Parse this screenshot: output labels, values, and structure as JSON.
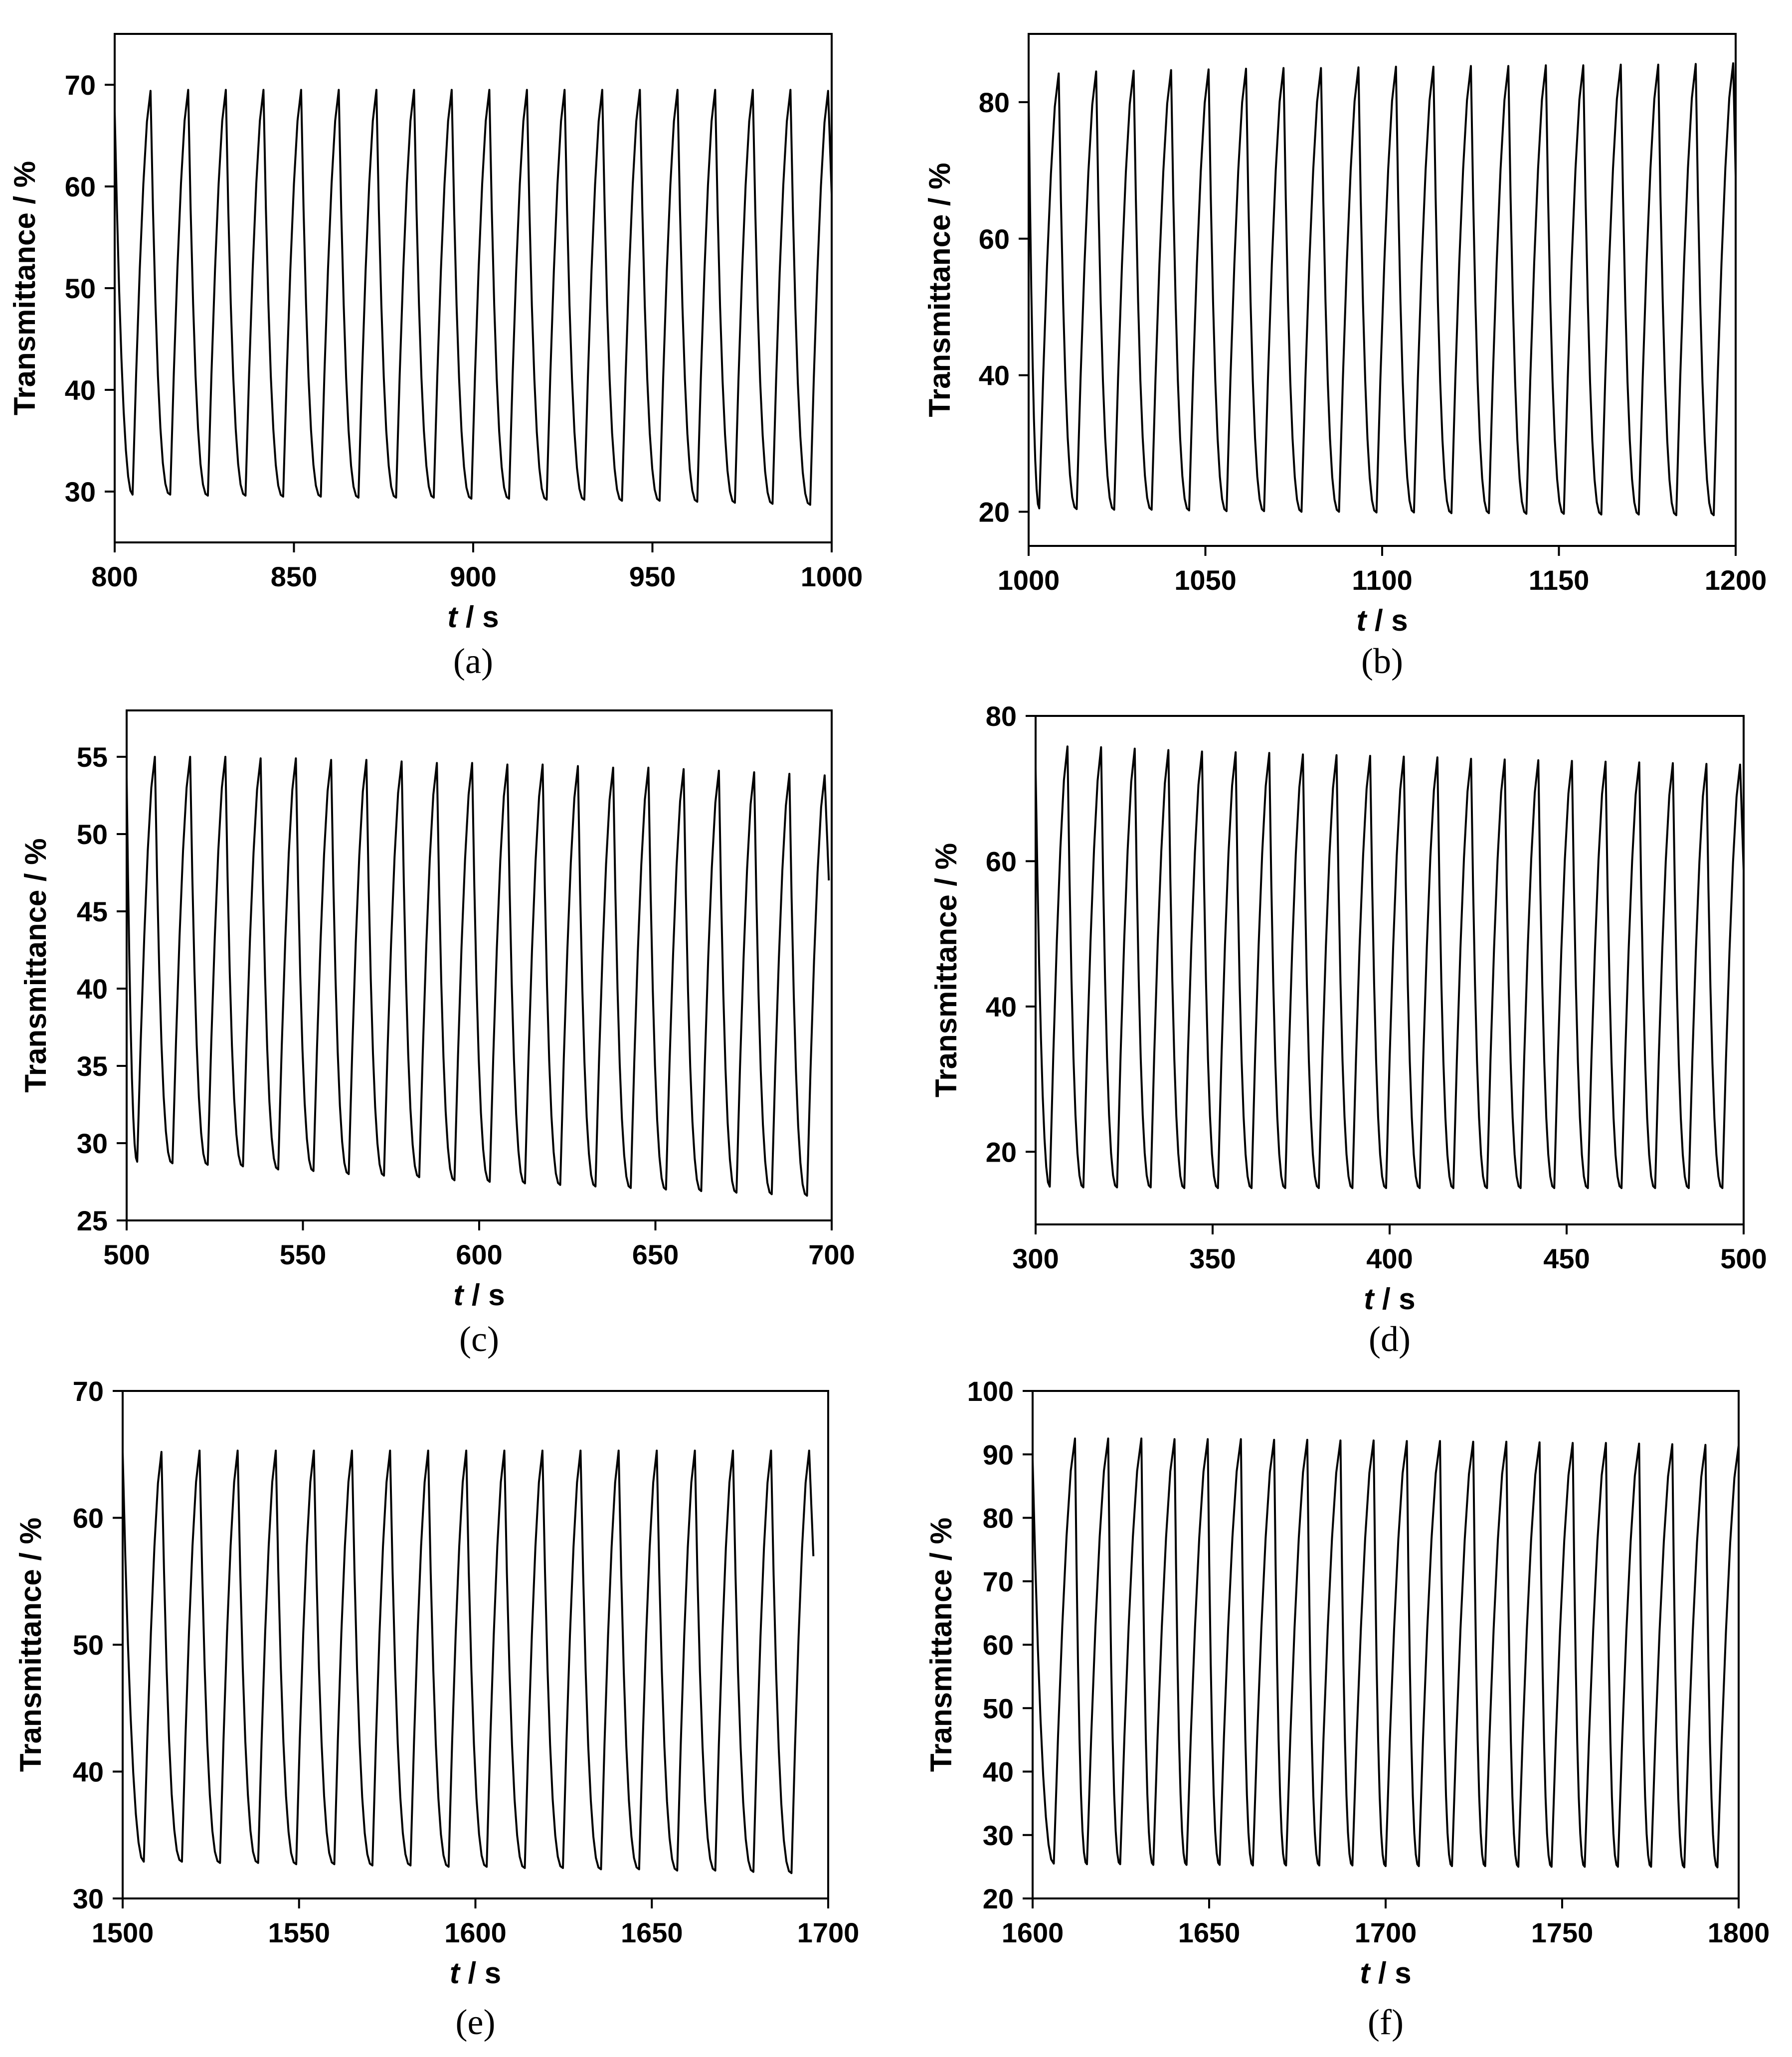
{
  "chart_data": [
    {
      "type": "line",
      "caption": "(a)",
      "xlabel": "t / s",
      "ylabel": "Transmittance / %",
      "xlim": [
        800,
        1000
      ],
      "ylim": [
        25,
        75
      ],
      "xticks": [
        800,
        850,
        900,
        950,
        1000
      ],
      "yticks": [
        30,
        40,
        50,
        60,
        70
      ],
      "series": [
        {
          "period_s": 10.5,
          "cycles": [
            {
              "t_min": 805,
              "min": 29.7,
              "t_max": 810,
              "max": 69.4
            },
            {
              "t_min": 815.5,
              "min": 29.7,
              "t_max": 820.5,
              "max": 69.5
            },
            {
              "t_min": 826,
              "min": 29.6,
              "t_max": 831,
              "max": 69.5
            },
            {
              "t_min": 836.5,
              "min": 29.6,
              "t_max": 841.5,
              "max": 69.5
            },
            {
              "t_min": 847,
              "min": 29.5,
              "t_max": 852,
              "max": 69.5
            },
            {
              "t_min": 857.5,
              "min": 29.5,
              "t_max": 862.5,
              "max": 69.5
            },
            {
              "t_min": 868,
              "min": 29.4,
              "t_max": 873,
              "max": 69.5
            },
            {
              "t_min": 878.5,
              "min": 29.4,
              "t_max": 883.5,
              "max": 69.5
            },
            {
              "t_min": 889,
              "min": 29.4,
              "t_max": 894,
              "max": 69.5
            },
            {
              "t_min": 899.5,
              "min": 29.3,
              "t_max": 904.5,
              "max": 69.5
            },
            {
              "t_min": 910,
              "min": 29.3,
              "t_max": 915,
              "max": 69.5
            },
            {
              "t_min": 920.5,
              "min": 29.2,
              "t_max": 925.5,
              "max": 69.5
            },
            {
              "t_min": 931,
              "min": 29.2,
              "t_max": 936,
              "max": 69.5
            },
            {
              "t_min": 941.5,
              "min": 29.1,
              "t_max": 946.5,
              "max": 69.5
            },
            {
              "t_min": 952,
              "min": 29.1,
              "t_max": 957,
              "max": 69.5
            },
            {
              "t_min": 962.5,
              "min": 29.0,
              "t_max": 967.5,
              "max": 69.5
            },
            {
              "t_min": 973,
              "min": 28.9,
              "t_max": 978,
              "max": 69.5
            },
            {
              "t_min": 983.5,
              "min": 28.8,
              "t_max": 988.5,
              "max": 69.5
            },
            {
              "t_min": 994,
              "min": 28.7,
              "t_max": 999,
              "max": 69.4
            }
          ]
        }
      ]
    },
    {
      "type": "line",
      "caption": "(b)",
      "xlabel": "t / s",
      "ylabel": "Transmittance / %",
      "xlim": [
        1000,
        1200
      ],
      "ylim": [
        15,
        90
      ],
      "xticks": [
        1000,
        1050,
        1100,
        1150,
        1200
      ],
      "yticks": [
        20,
        40,
        60,
        80
      ],
      "series": [
        {
          "period_s": 10.6,
          "cycles": [
            {
              "t_min": 1003,
              "min": 20.5,
              "t_max": 1008.5,
              "max": 84.2
            },
            {
              "t_min": 1013.6,
              "min": 20.4,
              "t_max": 1019.1,
              "max": 84.5
            },
            {
              "t_min": 1024.2,
              "min": 20.3,
              "t_max": 1029.7,
              "max": 84.6
            },
            {
              "t_min": 1034.8,
              "min": 20.3,
              "t_max": 1040.3,
              "max": 84.7
            },
            {
              "t_min": 1045.4,
              "min": 20.2,
              "t_max": 1050.9,
              "max": 84.8
            },
            {
              "t_min": 1056,
              "min": 20.1,
              "t_max": 1061.5,
              "max": 84.9
            },
            {
              "t_min": 1066.6,
              "min": 20.1,
              "t_max": 1072.1,
              "max": 85.0
            },
            {
              "t_min": 1077.2,
              "min": 20.0,
              "t_max": 1082.7,
              "max": 85.0
            },
            {
              "t_min": 1087.8,
              "min": 20.0,
              "t_max": 1093.3,
              "max": 85.1
            },
            {
              "t_min": 1098.4,
              "min": 19.9,
              "t_max": 1103.9,
              "max": 85.2
            },
            {
              "t_min": 1109,
              "min": 19.9,
              "t_max": 1114.5,
              "max": 85.2
            },
            {
              "t_min": 1119.6,
              "min": 19.8,
              "t_max": 1125.1,
              "max": 85.3
            },
            {
              "t_min": 1130.2,
              "min": 19.8,
              "t_max": 1135.7,
              "max": 85.3
            },
            {
              "t_min": 1140.8,
              "min": 19.7,
              "t_max": 1146.3,
              "max": 85.4
            },
            {
              "t_min": 1151.4,
              "min": 19.7,
              "t_max": 1156.9,
              "max": 85.4
            },
            {
              "t_min": 1162,
              "min": 19.6,
              "t_max": 1167.5,
              "max": 85.5
            },
            {
              "t_min": 1172.6,
              "min": 19.6,
              "t_max": 1178.1,
              "max": 85.5
            },
            {
              "t_min": 1183.2,
              "min": 19.5,
              "t_max": 1188.7,
              "max": 85.6
            },
            {
              "t_min": 1193.8,
              "min": 19.5,
              "t_max": 1199.3,
              "max": 85.7
            }
          ]
        }
      ]
    },
    {
      "type": "line",
      "caption": "(c)",
      "xlabel": "t / s",
      "ylabel": "Transmittance / %",
      "xlim": [
        500,
        700
      ],
      "ylim": [
        25,
        58
      ],
      "xticks": [
        500,
        550,
        600,
        650,
        700
      ],
      "yticks": [
        25,
        30,
        35,
        40,
        45,
        50,
        55
      ],
      "series": [
        {
          "period_s": 10,
          "cycles": [
            {
              "t_min": 503,
              "min": 28.8,
              "t_max": 508,
              "max": 55.0
            },
            {
              "t_min": 513,
              "min": 28.7,
              "t_max": 518,
              "max": 55.0
            },
            {
              "t_min": 523,
              "min": 28.6,
              "t_max": 528,
              "max": 55.0
            },
            {
              "t_min": 533,
              "min": 28.5,
              "t_max": 538,
              "max": 54.9
            },
            {
              "t_min": 543,
              "min": 28.3,
              "t_max": 548,
              "max": 54.9
            },
            {
              "t_min": 553,
              "min": 28.2,
              "t_max": 558,
              "max": 54.8
            },
            {
              "t_min": 563,
              "min": 28.0,
              "t_max": 568,
              "max": 54.8
            },
            {
              "t_min": 573,
              "min": 27.9,
              "t_max": 578,
              "max": 54.7
            },
            {
              "t_min": 583,
              "min": 27.8,
              "t_max": 588,
              "max": 54.6
            },
            {
              "t_min": 593,
              "min": 27.6,
              "t_max": 598,
              "max": 54.6
            },
            {
              "t_min": 603,
              "min": 27.5,
              "t_max": 608,
              "max": 54.5
            },
            {
              "t_min": 613,
              "min": 27.4,
              "t_max": 618,
              "max": 54.5
            },
            {
              "t_min": 623,
              "min": 27.3,
              "t_max": 628,
              "max": 54.4
            },
            {
              "t_min": 633,
              "min": 27.2,
              "t_max": 638,
              "max": 54.3
            },
            {
              "t_min": 643,
              "min": 27.1,
              "t_max": 648,
              "max": 54.3
            },
            {
              "t_min": 653,
              "min": 27.0,
              "t_max": 658,
              "max": 54.2
            },
            {
              "t_min": 663,
              "min": 26.9,
              "t_max": 668,
              "max": 54.1
            },
            {
              "t_min": 673,
              "min": 26.8,
              "t_max": 678,
              "max": 54.0
            },
            {
              "t_min": 683,
              "min": 26.7,
              "t_max": 688,
              "max": 53.9
            },
            {
              "t_min": 693,
              "min": 26.6,
              "t_max": 698,
              "max": 53.8
            }
          ]
        }
      ]
    },
    {
      "type": "line",
      "caption": "(d)",
      "xlabel": "t / s",
      "ylabel": "Transmittance / %",
      "xlim": [
        300,
        500
      ],
      "ylim": [
        10,
        80
      ],
      "xticks": [
        300,
        350,
        400,
        450,
        500
      ],
      "yticks": [
        20,
        40,
        60,
        80
      ],
      "series": [
        {
          "period_s": 9.5,
          "cycles": [
            {
              "t_min": 304,
              "min": 15.2,
              "t_max": 309,
              "max": 75.8
            },
            {
              "t_min": 313.5,
              "min": 15.1,
              "t_max": 318.5,
              "max": 75.7
            },
            {
              "t_min": 323,
              "min": 15.1,
              "t_max": 328,
              "max": 75.5
            },
            {
              "t_min": 332.5,
              "min": 15.1,
              "t_max": 337.5,
              "max": 75.3
            },
            {
              "t_min": 342,
              "min": 15.0,
              "t_max": 347,
              "max": 75.1
            },
            {
              "t_min": 351.5,
              "min": 15.0,
              "t_max": 356.5,
              "max": 75.0
            },
            {
              "t_min": 361,
              "min": 15.0,
              "t_max": 366,
              "max": 74.9
            },
            {
              "t_min": 370.5,
              "min": 15.0,
              "t_max": 375.5,
              "max": 74.7
            },
            {
              "t_min": 380,
              "min": 15.0,
              "t_max": 385,
              "max": 74.6
            },
            {
              "t_min": 389.5,
              "min": 15.0,
              "t_max": 394.5,
              "max": 74.5
            },
            {
              "t_min": 399,
              "min": 15.0,
              "t_max": 404,
              "max": 74.4
            },
            {
              "t_min": 408.5,
              "min": 15.0,
              "t_max": 413.5,
              "max": 74.3
            },
            {
              "t_min": 418,
              "min": 15.0,
              "t_max": 423,
              "max": 74.1
            },
            {
              "t_min": 427.5,
              "min": 15.0,
              "t_max": 432.5,
              "max": 74.0
            },
            {
              "t_min": 437,
              "min": 15.0,
              "t_max": 442,
              "max": 73.9
            },
            {
              "t_min": 446.5,
              "min": 15.0,
              "t_max": 451.5,
              "max": 73.8
            },
            {
              "t_min": 456,
              "min": 15.0,
              "t_max": 461,
              "max": 73.7
            },
            {
              "t_min": 465.5,
              "min": 15.0,
              "t_max": 470.5,
              "max": 73.6
            },
            {
              "t_min": 475,
              "min": 15.0,
              "t_max": 480,
              "max": 73.5
            },
            {
              "t_min": 484.5,
              "min": 15.0,
              "t_max": 489.5,
              "max": 73.4
            },
            {
              "t_min": 494,
              "min": 15.0,
              "t_max": 499,
              "max": 73.3
            }
          ]
        }
      ]
    },
    {
      "type": "line",
      "caption": "(e)",
      "xlabel": "t / s",
      "ylabel": "Transmittance / %",
      "xlim": [
        1500,
        1700
      ],
      "ylim": [
        30,
        70
      ],
      "xticks": [
        1500,
        1550,
        1600,
        1650,
        1700
      ],
      "yticks": [
        30,
        40,
        50,
        60,
        70
      ],
      "series": [
        {
          "period_s": 10.8,
          "cycles": [
            {
              "t_min": 1506,
              "min": 32.9,
              "t_max": 1511,
              "max": 65.2
            },
            {
              "t_min": 1516.8,
              "min": 32.9,
              "t_max": 1521.8,
              "max": 65.3
            },
            {
              "t_min": 1527.6,
              "min": 32.8,
              "t_max": 1532.6,
              "max": 65.3
            },
            {
              "t_min": 1538.4,
              "min": 32.8,
              "t_max": 1543.4,
              "max": 65.3
            },
            {
              "t_min": 1549.2,
              "min": 32.7,
              "t_max": 1554.2,
              "max": 65.3
            },
            {
              "t_min": 1560,
              "min": 32.7,
              "t_max": 1565,
              "max": 65.3
            },
            {
              "t_min": 1570.8,
              "min": 32.6,
              "t_max": 1575.8,
              "max": 65.3
            },
            {
              "t_min": 1581.6,
              "min": 32.6,
              "t_max": 1586.6,
              "max": 65.3
            },
            {
              "t_min": 1592.4,
              "min": 32.5,
              "t_max": 1597.4,
              "max": 65.3
            },
            {
              "t_min": 1603.2,
              "min": 32.5,
              "t_max": 1608.2,
              "max": 65.3
            },
            {
              "t_min": 1614,
              "min": 32.4,
              "t_max": 1619,
              "max": 65.3
            },
            {
              "t_min": 1624.8,
              "min": 32.4,
              "t_max": 1629.8,
              "max": 65.3
            },
            {
              "t_min": 1635.6,
              "min": 32.3,
              "t_max": 1640.6,
              "max": 65.3
            },
            {
              "t_min": 1646.4,
              "min": 32.3,
              "t_max": 1651.4,
              "max": 65.3
            },
            {
              "t_min": 1657.2,
              "min": 32.2,
              "t_max": 1662.2,
              "max": 65.3
            },
            {
              "t_min": 1668,
              "min": 32.2,
              "t_max": 1673,
              "max": 65.3
            },
            {
              "t_min": 1678.8,
              "min": 32.1,
              "t_max": 1683.8,
              "max": 65.3
            },
            {
              "t_min": 1689.6,
              "min": 32.0,
              "t_max": 1694.6,
              "max": 65.3
            }
          ]
        }
      ]
    },
    {
      "type": "line",
      "caption": "(f)",
      "xlabel": "t / s",
      "ylabel": "Transmittance / %",
      "xlim": [
        1600,
        1800
      ],
      "ylim": [
        20,
        100
      ],
      "xticks": [
        1600,
        1650,
        1700,
        1750,
        1800
      ],
      "yticks": [
        20,
        30,
        40,
        50,
        60,
        70,
        80,
        90,
        100
      ],
      "series": [
        {
          "period_s": 9.4,
          "cycles": [
            {
              "t_min": 1606,
              "min": 25.5,
              "t_max": 1612,
              "max": 92.5
            },
            {
              "t_min": 1615.4,
              "min": 25.4,
              "t_max": 1621.4,
              "max": 92.5
            },
            {
              "t_min": 1624.8,
              "min": 25.4,
              "t_max": 1630.8,
              "max": 92.5
            },
            {
              "t_min": 1634.2,
              "min": 25.3,
              "t_max": 1640.2,
              "max": 92.4
            },
            {
              "t_min": 1643.6,
              "min": 25.3,
              "t_max": 1649.6,
              "max": 92.4
            },
            {
              "t_min": 1653,
              "min": 25.3,
              "t_max": 1659,
              "max": 92.4
            },
            {
              "t_min": 1662.4,
              "min": 25.2,
              "t_max": 1668.4,
              "max": 92.3
            },
            {
              "t_min": 1671.8,
              "min": 25.2,
              "t_max": 1677.8,
              "max": 92.3
            },
            {
              "t_min": 1681.2,
              "min": 25.2,
              "t_max": 1687.2,
              "max": 92.2
            },
            {
              "t_min": 1690.6,
              "min": 25.2,
              "t_max": 1696.6,
              "max": 92.2
            },
            {
              "t_min": 1700,
              "min": 25.1,
              "t_max": 1706,
              "max": 92.1
            },
            {
              "t_min": 1709.4,
              "min": 25.1,
              "t_max": 1715.4,
              "max": 92.1
            },
            {
              "t_min": 1718.8,
              "min": 25.1,
              "t_max": 1724.8,
              "max": 92.0
            },
            {
              "t_min": 1728.2,
              "min": 25.1,
              "t_max": 1734.2,
              "max": 92.0
            },
            {
              "t_min": 1737.6,
              "min": 25.0,
              "t_max": 1743.6,
              "max": 91.9
            },
            {
              "t_min": 1747,
              "min": 25.0,
              "t_max": 1753,
              "max": 91.8
            },
            {
              "t_min": 1756.4,
              "min": 25.0,
              "t_max": 1762.4,
              "max": 91.8
            },
            {
              "t_min": 1765.8,
              "min": 25.0,
              "t_max": 1771.8,
              "max": 91.7
            },
            {
              "t_min": 1775.2,
              "min": 25.0,
              "t_max": 1781.2,
              "max": 91.6
            },
            {
              "t_min": 1784.6,
              "min": 24.9,
              "t_max": 1790.6,
              "max": 91.5
            },
            {
              "t_min": 1794,
              "min": 24.9,
              "t_max": 1800,
              "max": 91.4
            }
          ]
        }
      ]
    }
  ]
}
